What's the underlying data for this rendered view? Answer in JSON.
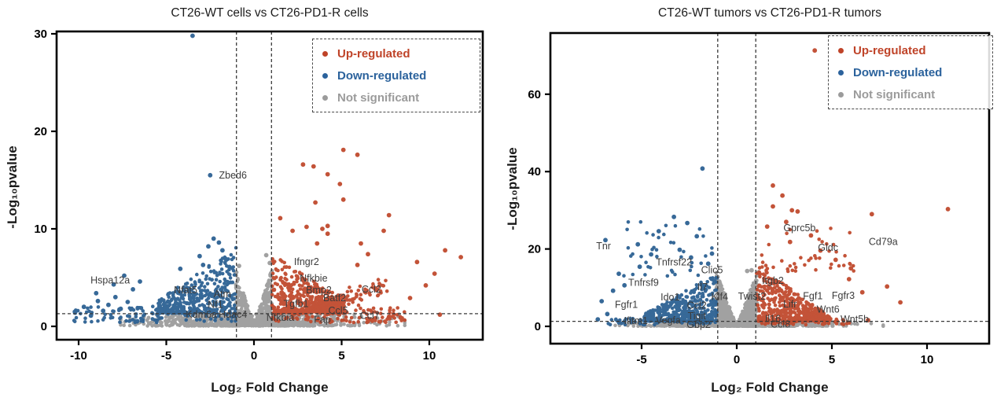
{
  "legend": {
    "items": [
      {
        "label": "Up-regulated",
        "color": "#bf4328"
      },
      {
        "label": "Down-regulated",
        "color": "#2b629c"
      },
      {
        "label": "Not significant",
        "color": "#9b9b9b"
      }
    ]
  },
  "chart_data": [
    {
      "type": "scatter",
      "variant": "volcano",
      "title": "CT26-WT cells vs CT26-PD1-R cells",
      "xlabel": "Log₂ Fold Change",
      "ylabel": "-Log₁₀pvalue",
      "xlim": [
        -11.3,
        13.0
      ],
      "ylim": [
        -1.4,
        30.2
      ],
      "xticks": [
        -10,
        -5,
        0,
        5,
        10
      ],
      "yticks": [
        0,
        10,
        20,
        30
      ],
      "thresholds": {
        "x": [
          -1,
          1
        ],
        "y": 1.3
      },
      "colors": {
        "up": "#c04a2e",
        "down": "#2d6193",
        "ns": "#9d9d9d"
      },
      "point_radius": 2.3,
      "labeled_genes": {
        "down": [
          {
            "name": "Zbed6",
            "x": -1.2,
            "y": 15.5
          },
          {
            "name": "Hspa12a",
            "x": -8.2,
            "y": 4.7
          },
          {
            "name": "Nfat5",
            "x": -3.9,
            "y": 3.7
          },
          {
            "name": "Atm",
            "x": -1.8,
            "y": 3.3
          },
          {
            "name": "Nf1",
            "x": -2.2,
            "y": 2.2
          },
          {
            "name": "Kdm6a",
            "x": -3.0,
            "y": 1.2
          },
          {
            "name": "Hdac4",
            "x": -1.2,
            "y": 1.2
          }
        ],
        "up": [
          {
            "name": "Ifngr2",
            "x": 3.0,
            "y": 6.6
          },
          {
            "name": "Nfkbie",
            "x": 3.4,
            "y": 4.9
          },
          {
            "name": "Bmp2",
            "x": 3.7,
            "y": 3.7
          },
          {
            "name": "Batf2",
            "x": 4.6,
            "y": 2.9
          },
          {
            "name": "Tgfb1",
            "x": 2.4,
            "y": 2.3
          },
          {
            "name": "Ccl2",
            "x": 6.7,
            "y": 3.8
          },
          {
            "name": "Ccl5",
            "x": 4.8,
            "y": 1.6
          },
          {
            "name": "Ccl7",
            "x": 6.6,
            "y": 1.1
          },
          {
            "name": "Nfkbia",
            "x": 1.5,
            "y": 0.9
          },
          {
            "name": "Fap",
            "x": 3.9,
            "y": 0.7
          }
        ],
        "other": []
      },
      "outliers": {
        "down": [
          [
            -3.5,
            29.8
          ],
          [
            -2.5,
            15.5
          ],
          [
            -2.3,
            9.0
          ],
          [
            -2.0,
            8.6
          ],
          [
            -2.6,
            8.2
          ],
          [
            -1.8,
            7.8
          ],
          [
            -3.1,
            7.2
          ],
          [
            -1.6,
            6.9
          ],
          [
            -2.9,
            6.3
          ],
          [
            -4.2,
            5.9
          ],
          [
            -1.4,
            6.1
          ],
          [
            -10.2,
            1.4
          ],
          [
            -9.7,
            2.0
          ],
          [
            -9.3,
            1.1
          ],
          [
            -8.9,
            2.6
          ],
          [
            -8.6,
            1.6
          ],
          [
            -9.0,
            3.4
          ],
          [
            -8.3,
            2.2
          ],
          [
            -7.9,
            3.0
          ],
          [
            -7.6,
            1.8
          ],
          [
            -8.0,
            4.3
          ],
          [
            -7.2,
            2.5
          ],
          [
            -6.9,
            3.8
          ],
          [
            -7.4,
            5.2
          ],
          [
            -6.5,
            4.6
          ]
        ],
        "up": [
          [
            5.1,
            18.1
          ],
          [
            5.9,
            17.6
          ],
          [
            2.8,
            16.6
          ],
          [
            3.4,
            16.4
          ],
          [
            4.2,
            15.6
          ],
          [
            5.1,
            13.0
          ],
          [
            3.5,
            12.7
          ],
          [
            1.5,
            11.1
          ],
          [
            3.0,
            10.2
          ],
          [
            4.2,
            10.3
          ],
          [
            3.9,
            10.0
          ],
          [
            4.2,
            9.5
          ],
          [
            2.2,
            9.8
          ],
          [
            7.7,
            11.4
          ],
          [
            7.4,
            9.8
          ],
          [
            3.6,
            8.5
          ],
          [
            6.1,
            8.5
          ],
          [
            11.8,
            7.1
          ],
          [
            6.5,
            7.4
          ],
          [
            5.9,
            6.3
          ],
          [
            10.3,
            5.4
          ],
          [
            9.8,
            4.2
          ],
          [
            10.6,
            1.2
          ],
          [
            8.9,
            2.9
          ],
          [
            9.3,
            6.6
          ],
          [
            10.9,
            7.8
          ],
          [
            4.9,
            14.6
          ]
        ],
        "ns": [
          [
            -0.85,
            6.2
          ],
          [
            0.9,
            6.5
          ],
          [
            0.7,
            7.3
          ]
        ]
      },
      "clouds": [
        {
          "kind": "floor",
          "color": "ns",
          "n": 950,
          "xSigma": 3.0,
          "xClip": [
            -7.6,
            8.6
          ],
          "yMax": 1.3
        },
        {
          "kind": "wedge",
          "color": "ns",
          "n": 280,
          "xMax": 1.05,
          "peak": 6.0
        },
        {
          "kind": "tri",
          "color": "down",
          "n": 380,
          "x0": -5.5,
          "x1": -1.02,
          "peakAtX1": 8.2,
          "minPeak": 2.6,
          "pow": 1.5,
          "yBase": 1.35
        },
        {
          "kind": "floor",
          "color": "down",
          "n": 120,
          "uniform": true,
          "xClip": [
            -10.3,
            -1.05
          ],
          "yMin": 0.4,
          "yMax": 2.1
        },
        {
          "kind": "tri",
          "color": "up",
          "n": 420,
          "x0": 1.02,
          "x1": 5.2,
          "peakAtX0": 7.5,
          "minPeak": 2.5,
          "pow": 1.4,
          "yBase": 1.35
        },
        {
          "kind": "wing",
          "color": "up",
          "n": 160,
          "xA": 1.3,
          "xB": 7.6,
          "slope": 0.55,
          "noise": 0.38,
          "yMin": 1.4
        },
        {
          "kind": "floor",
          "color": "up",
          "n": 120,
          "uniform": true,
          "xClip": [
            1.05,
            8.6
          ],
          "yMin": 0.4,
          "yMax": 1.9
        }
      ]
    },
    {
      "type": "scatter",
      "variant": "volcano",
      "title": "CT26-WT tumors vs CT26-PD1-R tumors",
      "xlabel": "Log₂ Fold Change",
      "ylabel": "-Log₁₀pvalue",
      "xlim": [
        -9.8,
        13.3
      ],
      "ylim": [
        -4.5,
        75.8
      ],
      "xticks": [
        -5,
        0,
        5,
        10
      ],
      "yticks": [
        0,
        20,
        40,
        60
      ],
      "thresholds": {
        "x": [
          -1,
          1
        ],
        "y": 1.3
      },
      "colors": {
        "up": "#c04a2e",
        "down": "#2d6193",
        "ns": "#9d9d9d"
      },
      "point_radius": 2.3,
      "labeled_genes": {
        "down": [
          {
            "name": "Tnr",
            "x": -7.0,
            "y": 20.7
          },
          {
            "name": "Tnfrsf22",
            "x": -3.3,
            "y": 16.6
          },
          {
            "name": "Clic5",
            "x": -1.3,
            "y": 14.5
          },
          {
            "name": "Tnfrsf9",
            "x": -4.9,
            "y": 11.3
          },
          {
            "name": "Il7",
            "x": -1.8,
            "y": 10.2
          },
          {
            "name": "Ido1",
            "x": -3.5,
            "y": 7.5
          },
          {
            "name": "Klf4",
            "x": -0.9,
            "y": 7.6
          },
          {
            "name": "Fgfr1",
            "x": -5.8,
            "y": 5.6
          },
          {
            "name": "Ccl2",
            "x": -2.1,
            "y": 5.4
          },
          {
            "name": "Tigit",
            "x": -2.1,
            "y": 2.6
          },
          {
            "name": "Ifitm1",
            "x": -5.3,
            "y": 1.4
          },
          {
            "name": "Vegfa",
            "x": -3.6,
            "y": 1.5
          },
          {
            "name": "Gbp2",
            "x": -2.0,
            "y": 0.4
          }
        ],
        "up": [
          {
            "name": "Itgb2",
            "x": 1.9,
            "y": 11.8
          },
          {
            "name": "Gprc5b",
            "x": 3.3,
            "y": 25.4
          },
          {
            "name": "Cd79a",
            "x": 7.7,
            "y": 21.9
          },
          {
            "name": "Gldc",
            "x": 4.8,
            "y": 20.3
          },
          {
            "name": "Fgf1",
            "x": 4.0,
            "y": 7.8
          },
          {
            "name": "Fgfr3",
            "x": 5.6,
            "y": 7.9
          },
          {
            "name": "Lifr",
            "x": 2.8,
            "y": 5.7
          },
          {
            "name": "Wnt6",
            "x": 4.8,
            "y": 4.4
          },
          {
            "name": "Wnt5b",
            "x": 6.2,
            "y": 1.8
          },
          {
            "name": "Il16",
            "x": 1.9,
            "y": 1.9
          },
          {
            "name": "Ccl8",
            "x": 2.3,
            "y": 0.5
          }
        ],
        "other": [
          {
            "name": "Twist2",
            "x": 0.8,
            "y": 7.7
          }
        ]
      },
      "outliers": {
        "down": [
          [
            -1.8,
            40.8
          ],
          [
            -6.9,
            22.3
          ],
          [
            -3.3,
            28.3
          ],
          [
            -2.6,
            26.7
          ],
          [
            -4.1,
            24.6
          ],
          [
            -2.1,
            23.3
          ],
          [
            -5.2,
            21.2
          ],
          [
            -3.0,
            19.8
          ],
          [
            -4.5,
            18.6
          ],
          [
            -2.4,
            17.8
          ],
          [
            -6.2,
            13.6
          ],
          [
            -5.9,
            10.6
          ],
          [
            -6.5,
            9.2
          ],
          [
            -7.1,
            6.5
          ],
          [
            -6.8,
            3.2
          ],
          [
            -7.3,
            1.8
          ],
          [
            -5.1,
            15.4
          ],
          [
            -1.5,
            16.2
          ],
          [
            -1.3,
            18.8
          ]
        ],
        "up": [
          [
            4.1,
            71.3
          ],
          [
            1.9,
            36.4
          ],
          [
            2.4,
            33.8
          ],
          [
            1.9,
            31.0
          ],
          [
            2.9,
            30.0
          ],
          [
            3.2,
            29.7
          ],
          [
            7.1,
            29.0
          ],
          [
            11.1,
            30.3
          ],
          [
            2.6,
            27.0
          ],
          [
            1.6,
            25.8
          ],
          [
            3.9,
            23.5
          ],
          [
            2.8,
            21.8
          ],
          [
            4.4,
            19.6
          ],
          [
            5.2,
            17.2
          ],
          [
            6.0,
            15.0
          ],
          [
            7.9,
            10.3
          ],
          [
            8.6,
            6.2
          ],
          [
            6.9,
            1.6
          ],
          [
            5.9,
            12.2
          ],
          [
            6.6,
            8.8
          ]
        ],
        "ns": [
          [
            0.55,
            14.3
          ],
          [
            0.78,
            14.5
          ],
          [
            1.15,
            14.0
          ]
        ]
      },
      "clouds": [
        {
          "kind": "floor",
          "color": "ns",
          "n": 1100,
          "xSigma": 2.4,
          "xClip": [
            -7.2,
            7.7
          ],
          "yMax": 1.3
        },
        {
          "kind": "wedge",
          "color": "ns",
          "n": 650,
          "xMax": 1.08,
          "peak": 14.0
        },
        {
          "kind": "tri",
          "color": "down",
          "n": 430,
          "x0": -4.9,
          "x1": -1.02,
          "peakAtX1": 14.0,
          "minPeak": 3.0,
          "pow": 1.6,
          "yBase": 1.35
        },
        {
          "kind": "tri",
          "color": "up",
          "n": 470,
          "x0": 1.02,
          "x1": 4.9,
          "peakAtX0": 16.0,
          "minPeak": 2.5,
          "pow": 1.5,
          "yBase": 1.35
        },
        {
          "kind": "sparse",
          "color": "down",
          "n": 40,
          "xClip": [
            -6.4,
            -1.2
          ],
          "yRange": [
            13,
            27
          ]
        },
        {
          "kind": "sparse",
          "color": "up",
          "n": 45,
          "xClip": [
            1.2,
            6.2
          ],
          "yRange": [
            14,
            26
          ]
        },
        {
          "kind": "floor",
          "color": "down",
          "n": 60,
          "uniform": true,
          "xClip": [
            -6.8,
            -1.05
          ],
          "yMin": 0.4,
          "yMax": 2.0
        },
        {
          "kind": "floor",
          "color": "up",
          "n": 70,
          "uniform": true,
          "xClip": [
            1.05,
            6.0
          ],
          "yMin": 0.4,
          "yMax": 2.0
        }
      ]
    }
  ]
}
